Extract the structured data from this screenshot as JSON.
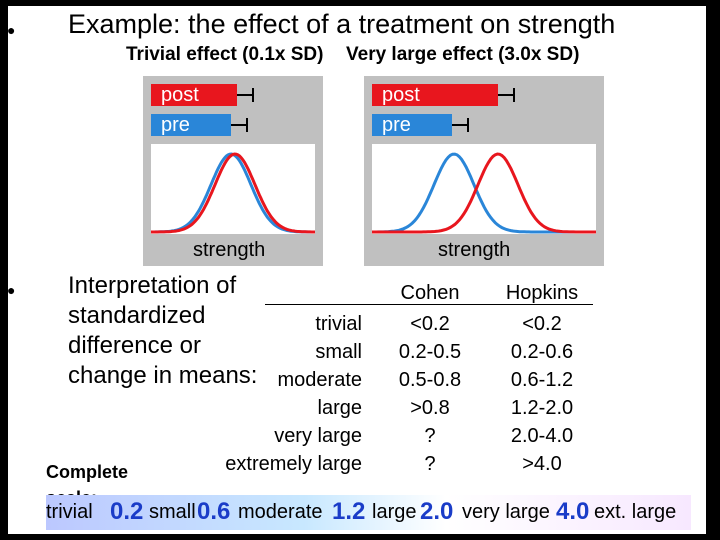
{
  "slide": {
    "title": "Example: the effect of a treatment on strength",
    "left_panel_title": "Trivial effect (0.1x SD)",
    "right_panel_title": "Very large effect (3.0x SD)",
    "bar_post": "post",
    "bar_pre": "pre",
    "axis_label": "strength",
    "interpretation": [
      "Interpretation of",
      "standardized",
      "difference or",
      "change in means:"
    ],
    "complete_scale_label": "Complete scale:"
  },
  "table": {
    "columns": [
      "Cohen",
      "Hopkins"
    ],
    "rows": [
      {
        "label": "trivial",
        "cohen": "<0.2",
        "hopkins": "<0.2"
      },
      {
        "label": "small",
        "cohen": "0.2-0.5",
        "hopkins": "0.2-0.6"
      },
      {
        "label": "moderate",
        "cohen": "0.5-0.8",
        "hopkins": "0.6-1.2"
      },
      {
        "label": "large",
        "cohen": ">0.8",
        "hopkins": "1.2-2.0"
      },
      {
        "label": "very large",
        "cohen": "?",
        "hopkins": "2.0-4.0"
      },
      {
        "label": "extremely large",
        "cohen": "?",
        "hopkins": ">4.0"
      }
    ]
  },
  "scale": {
    "w1": "trivial",
    "n1": "0.2",
    "w2": "small",
    "n2": "0.6",
    "w3": "moderate",
    "n3": "1.2",
    "w4": "large",
    "n4": "2.0",
    "w5": "very large",
    "n5": "4.0",
    "w6": "ext. large"
  },
  "colors": {
    "post": "#e8161e",
    "pre": "#2a86d8",
    "panel": "#c0c0c0",
    "scale_number": "#1a3cc8"
  }
}
